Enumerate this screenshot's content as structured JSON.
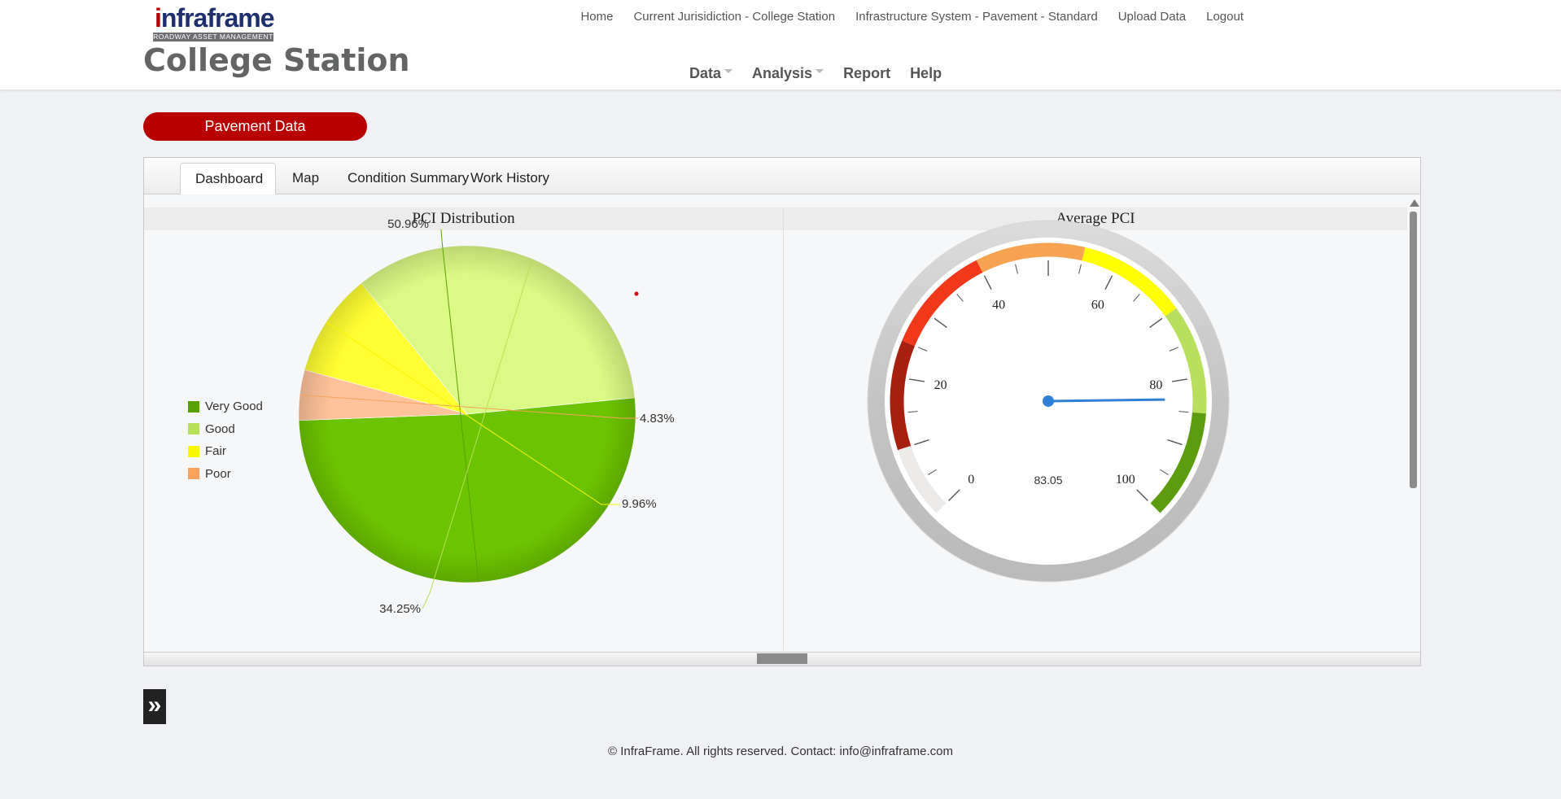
{
  "logo": {
    "brand_first": "i",
    "brand_rest": "nfraframe",
    "tagline": "ROADWAY ASSET MANAGEMENT"
  },
  "city_title": "College Station",
  "top_nav": [
    "Home",
    "Current Jurisidiction - College Station",
    "Infrastructure System - Pavement - Standard",
    "Upload Data",
    "Logout"
  ],
  "main_nav": [
    {
      "label": "Data",
      "dropdown": true
    },
    {
      "label": "Analysis",
      "dropdown": true
    },
    {
      "label": "Report",
      "dropdown": false
    },
    {
      "label": "Help",
      "dropdown": false
    }
  ],
  "section_button": "Pavement Data",
  "tabs": [
    "Dashboard",
    "Map",
    "Condition Summary",
    "Work History"
  ],
  "active_tab": "Dashboard",
  "left_panel_title": "PCI Distribution",
  "right_panel_title": "Average PCI",
  "collapse_glyph": "»",
  "footer": "© InfraFrame. All rights reserved. Contact: info@infraframe.com",
  "colors": {
    "brand_red": "#b80000",
    "needle": "#2f7fd6"
  },
  "chart_data": [
    {
      "type": "pie",
      "title": "PCI Distribution",
      "legend_position": "left",
      "slices": [
        {
          "label": "Very Good",
          "value": 50.96,
          "display": "50.96%",
          "color": "#6cc400",
          "legend_color": "#5aa000"
        },
        {
          "label": "Poor",
          "value": 4.83,
          "display": "4.83%",
          "color": "#ffc29a",
          "legend_color": "#f7a35c"
        },
        {
          "label": "Fair",
          "value": 9.96,
          "display": "9.96%",
          "color": "#ffff33",
          "legend_color": "#f7f700"
        },
        {
          "label": "Good",
          "value": 34.25,
          "display": "34.25%",
          "color": "#dbfa85",
          "legend_color": "#b7e05a"
        }
      ],
      "legend": [
        {
          "label": "Very Good",
          "color": "#5aa000"
        },
        {
          "label": "Good",
          "color": "#b7e05a"
        },
        {
          "label": "Fair",
          "color": "#f7f700"
        },
        {
          "label": "Poor",
          "color": "#f7a35c"
        }
      ]
    },
    {
      "type": "gauge",
      "title": "Average PCI",
      "value": 83.05,
      "value_label": "83.05",
      "min": 0,
      "max": 100,
      "tick_labels": [
        "0",
        "20",
        "40",
        "60",
        "80",
        "100"
      ],
      "bands": [
        {
          "from": 0,
          "to": 10,
          "color": "#ece9e9"
        },
        {
          "from": 10,
          "to": 25,
          "color": "#a81f0f"
        },
        {
          "from": 25,
          "to": 40,
          "color": "#f2381a"
        },
        {
          "from": 40,
          "to": 55,
          "color": "#f7a352"
        },
        {
          "from": 55,
          "to": 70,
          "color": "#ffff00"
        },
        {
          "from": 70,
          "to": 85,
          "color": "#b8e05c"
        },
        {
          "from": 85,
          "to": 100,
          "color": "#5e9c0f"
        }
      ]
    }
  ]
}
